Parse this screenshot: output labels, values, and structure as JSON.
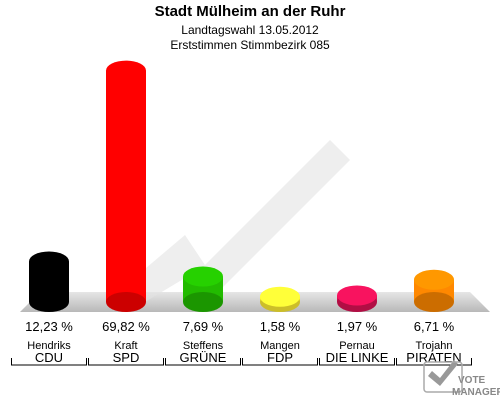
{
  "header": {
    "title": "Stadt Mülheim an der Ruhr",
    "subtitle1": "Landtagswahl 13.05.2012",
    "subtitle2": "Erststimmen Stimmbezirk 085"
  },
  "logo": {
    "line1": "VOTE",
    "line2": "MANAGER"
  },
  "chart_data": {
    "type": "bar",
    "title": "Stadt Mülheim an der Ruhr",
    "subtitle": "Landtagswahl 13.05.2012 — Erststimmen Stimmbezirk 085",
    "categories": [
      "CDU",
      "SPD",
      "GRÜNE",
      "FDP",
      "DIE LINKE",
      "PIRATEN"
    ],
    "candidates": [
      "Hendriks",
      "Kraft",
      "Steffens",
      "Mangen",
      "Pernau",
      "Trojahn"
    ],
    "values": [
      12.23,
      69.82,
      7.69,
      1.58,
      1.97,
      6.71
    ],
    "labels": [
      "12,23 %",
      "69,82 %",
      "7,69 %",
      "1,58 %",
      "1,97 %",
      "6,71 %"
    ],
    "colors": [
      "#000000",
      "#ff0000",
      "#22bb00",
      "#ffee33",
      "#dd1155",
      "#ff8800"
    ],
    "ylim": [
      0,
      70
    ],
    "xlabel": "",
    "ylabel": ""
  }
}
